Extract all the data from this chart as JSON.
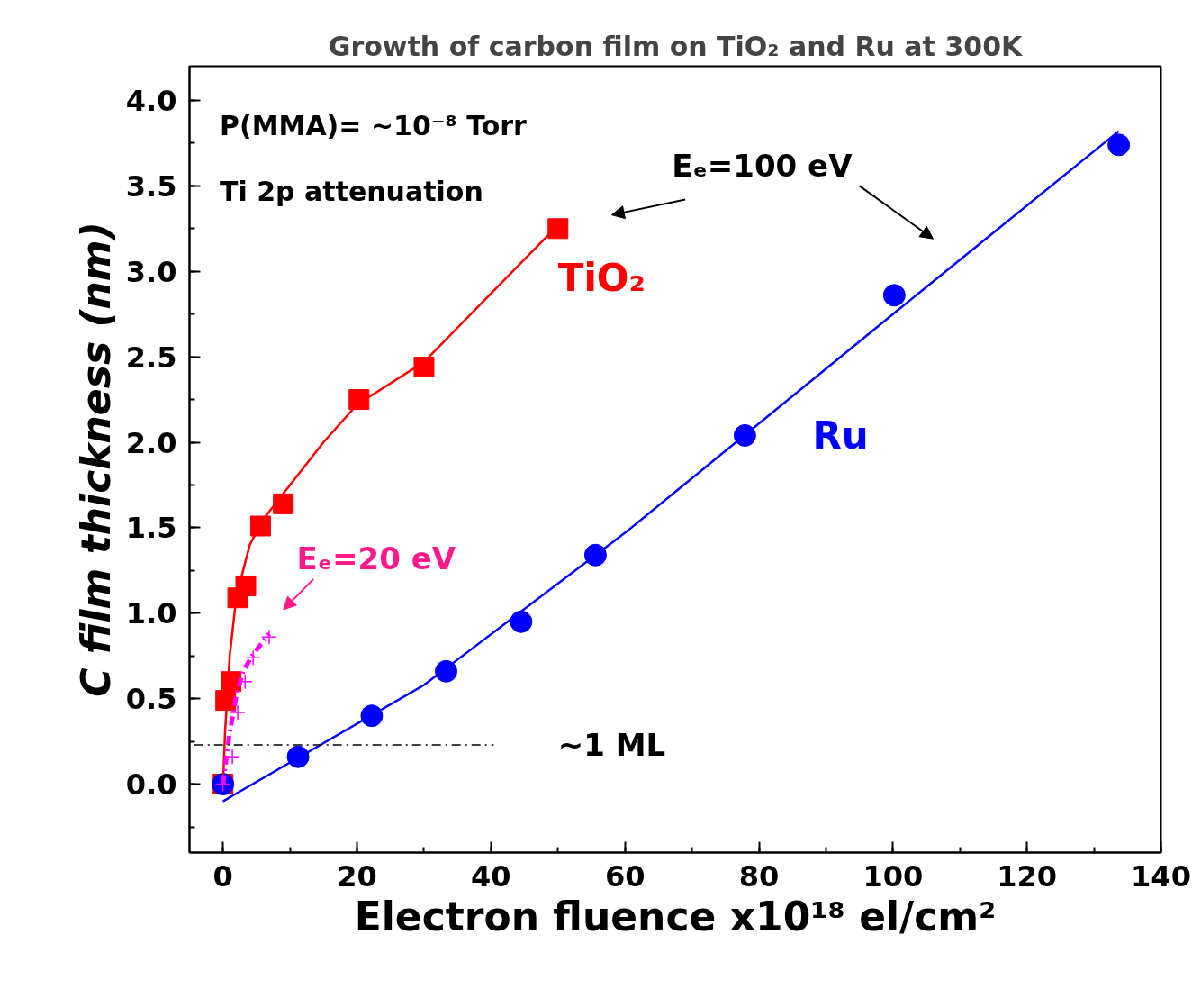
{
  "chart_data": {
    "type": "scatter",
    "title": "Growth of carbon film on TiO₂ and Ru at 300K",
    "xlabel": "Electron fluence x10¹⁸ el/cm²",
    "ylabel": "C film thickness (nm)",
    "xlim": [
      -5,
      140
    ],
    "ylim": [
      -0.4,
      4.2
    ],
    "xticks": [
      0,
      20,
      40,
      60,
      80,
      100,
      120,
      140
    ],
    "yticks": [
      {
        "value": 0,
        "label": "0.0"
      },
      {
        "value": 0.5,
        "label": "0.5"
      },
      {
        "value": 1,
        "label": "1.0"
      },
      {
        "value": 1.5,
        "label": "1.5"
      },
      {
        "value": 2,
        "label": "2.0"
      },
      {
        "value": 2.5,
        "label": "2.5"
      },
      {
        "value": 3,
        "label": "3.0"
      },
      {
        "value": 3.5,
        "label": "3.5"
      },
      {
        "value": 4,
        "label": "4.0"
      }
    ],
    "grid": false,
    "series": [
      {
        "name": "TiO₂",
        "marker": "square",
        "color": "#ff0000",
        "x": [
          0,
          0.4,
          1.2,
          2.2,
          3.4,
          5.6,
          9,
          20.3,
          30,
          50
        ],
        "values": [
          0,
          0.49,
          0.6,
          1.09,
          1.16,
          1.51,
          1.64,
          2.25,
          2.44,
          3.25
        ]
      },
      {
        "name": "Ru",
        "marker": "circle",
        "color": "#0000ff",
        "x": [
          0,
          11.2,
          22.2,
          33.3,
          44.5,
          55.6,
          77.9,
          100.2,
          133.7
        ],
        "values": [
          0,
          0.16,
          0.4,
          0.66,
          0.95,
          1.34,
          2.04,
          2.86,
          3.74
        ]
      },
      {
        "marker": "cross",
        "color": "#ff00ff",
        "x": [
          0,
          1.4,
          2.2,
          3.3,
          4.5,
          6.9
        ],
        "values": [
          0,
          0.16,
          0.42,
          0.6,
          0.74,
          0.86
        ]
      },
      {
        "type": "line",
        "line_style": "solid",
        "color": "#ff0000",
        "x": [
          0,
          0.3,
          1,
          2,
          4,
          6,
          9,
          15,
          20,
          30,
          40,
          50
        ],
        "values": [
          0,
          0.3,
          0.75,
          1.1,
          1.4,
          1.55,
          1.7,
          2.0,
          2.22,
          2.47,
          2.87,
          3.27
        ]
      },
      {
        "type": "line",
        "line_style": "solid",
        "color": "#0000ff",
        "x": [
          0,
          30,
          60,
          100,
          133.7
        ],
        "values": [
          -0.1,
          0.58,
          1.47,
          2.75,
          3.82
        ]
      },
      {
        "type": "line",
        "line_style": "dashed",
        "color": "#ff00ff",
        "x": [
          0,
          1,
          2,
          3,
          4.5,
          6.9
        ],
        "values": [
          0,
          0.3,
          0.52,
          0.66,
          0.76,
          0.88
        ]
      },
      {
        "type": "line",
        "line_style": "dashed",
        "color": "#000000",
        "x": [
          -4.3,
          40.4
        ],
        "values": [
          0.23,
          0.23
        ]
      }
    ],
    "annotations": [
      "P(MMA)= ~10⁻⁸ Torr",
      "Ti 2p attenuation",
      "Eₑ=100 eV",
      "Eₑ=20 eV",
      "~1 ML"
    ]
  }
}
